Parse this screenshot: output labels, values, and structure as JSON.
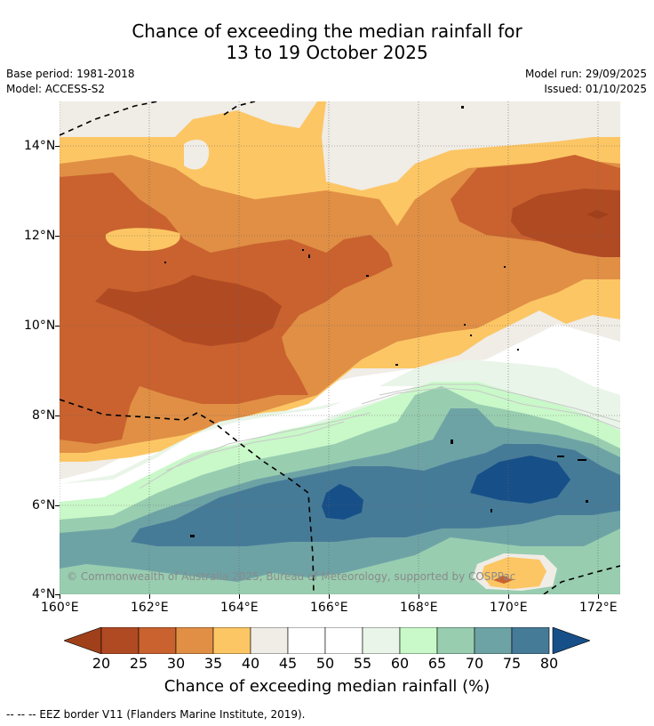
{
  "title": {
    "line1": "Chance of exceeding the median rainfall for",
    "line2": "13 to 19 October 2025"
  },
  "meta": {
    "base_period": "Base period: 1981-2018",
    "model": "Model: ACCESS-S2",
    "model_run": "Model run: 29/09/2025",
    "issued": "Issued: 01/10/2025"
  },
  "map": {
    "copyright": "© Commonwealth of Australia 2025, Bureau of Meteorology, supported by COSPPac",
    "lat_labels": [
      "14°N",
      "12°N",
      "10°N",
      "8°N",
      "6°N",
      "4°N"
    ],
    "lon_labels": [
      "160°E",
      "162°E",
      "164°E",
      "166°E",
      "168°E",
      "170°E",
      "172°E"
    ]
  },
  "colorbar": {
    "title": "Chance of exceeding median rainfall (%)",
    "ticks": [
      "20",
      "25",
      "30",
      "35",
      "40",
      "45",
      "50",
      "55",
      "60",
      "65",
      "70",
      "75",
      "80"
    ],
    "colors": {
      "lt20": "#a0401a",
      "c20": "#b04a23",
      "c25": "#c9622e",
      "c30": "#e08f45",
      "c35": "#fcc664",
      "c40": "#f0ece6",
      "c45": "#ffffff",
      "c50": "#ffffff",
      "c55": "#e9f5e8",
      "c60": "#c9f8c9",
      "c65": "#98cdb0",
      "c70": "#6ea3a6",
      "c75": "#467b98",
      "gt80": "#174f88"
    }
  },
  "footer": {
    "eez_note": "--  --  -- EEZ border V11 (Flanders Marine Institute, 2019)."
  }
}
